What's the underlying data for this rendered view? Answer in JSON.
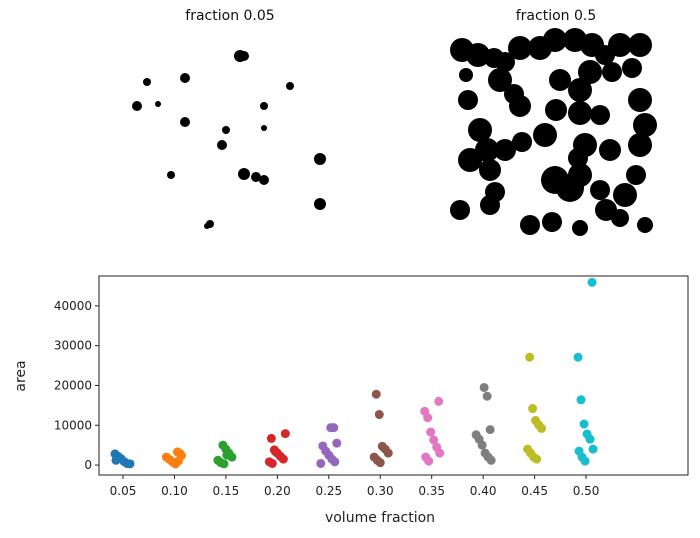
{
  "images": [
    {
      "title": "fraction 0.05"
    },
    {
      "title": "fraction 0.5"
    }
  ],
  "chart_data": {
    "type": "scatter",
    "subtype": "strip",
    "xlabel": "volume fraction",
    "ylabel": "area",
    "categories": [
      "0.05",
      "0.10",
      "0.15",
      "0.20",
      "0.25",
      "0.30",
      "0.35",
      "0.40",
      "0.45",
      "0.50"
    ],
    "ylim": [
      -2500,
      47500
    ],
    "yticks": [
      0,
      10000,
      20000,
      30000,
      40000
    ],
    "ytick_labels": [
      "0",
      "10000",
      "20000",
      "30000",
      "40000"
    ],
    "grid": false,
    "colors": [
      "#1f77b4",
      "#ff7f0e",
      "#2ca02c",
      "#d62728",
      "#9467bd",
      "#8c564b",
      "#e377c2",
      "#7f7f7f",
      "#bcbd22",
      "#17becf"
    ],
    "series": [
      {
        "values": [
          2800,
          2200,
          1600,
          900,
          400,
          300,
          1200
        ]
      },
      {
        "values": [
          3300,
          2800,
          2000,
          1400,
          800,
          300,
          1000,
          2400
        ]
      },
      {
        "values": [
          5000,
          4000,
          3000,
          2000,
          1200,
          600,
          300,
          2500
        ]
      },
      {
        "values": [
          7900,
          6700,
          3800,
          3000,
          2200,
          1500,
          800,
          400,
          3400
        ]
      },
      {
        "values": [
          9400,
          9400,
          5500,
          4800,
          3500,
          2500,
          1500,
          800,
          400
        ]
      },
      {
        "values": [
          17800,
          12700,
          4700,
          4000,
          3000,
          2000,
          1200,
          600
        ]
      },
      {
        "values": [
          16000,
          13500,
          11900,
          8300,
          6300,
          4500,
          3000,
          2000,
          1000
        ]
      },
      {
        "values": [
          19500,
          17300,
          8900,
          7600,
          6500,
          5000,
          3000,
          2000,
          1200
        ]
      },
      {
        "values": [
          27100,
          14200,
          11200,
          10100,
          9200,
          4000,
          3000,
          2000,
          1500
        ]
      },
      {
        "values": [
          45900,
          27100,
          16400,
          10300,
          7800,
          6500,
          4000,
          3500,
          2000,
          1000
        ]
      }
    ]
  }
}
